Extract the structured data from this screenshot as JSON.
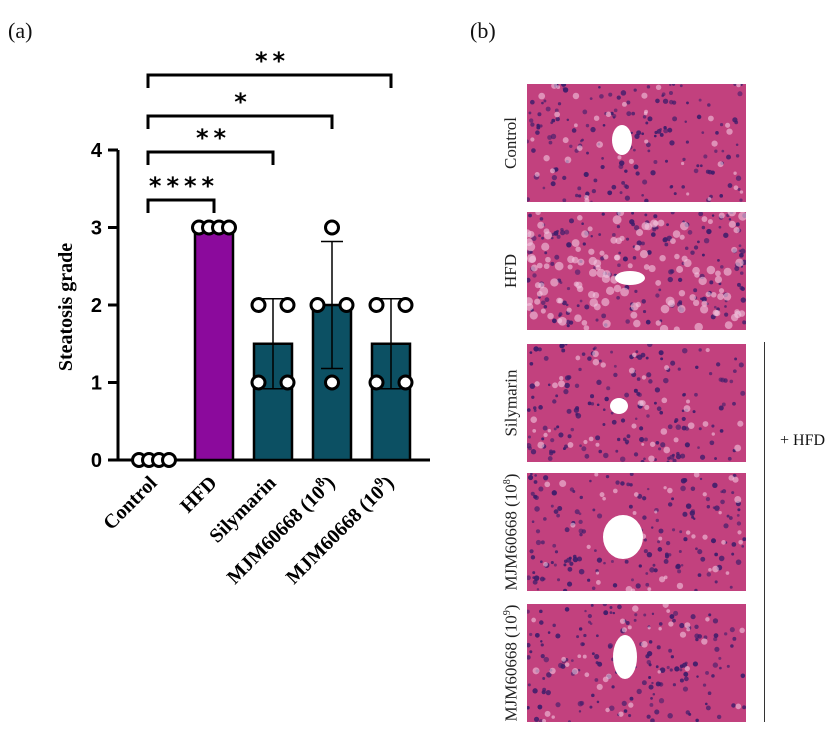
{
  "panel_a_label": "(a)",
  "panel_b_label": "(b)",
  "chart_data": {
    "type": "bar",
    "ylabel": "Steatosis grade",
    "xlabel": "",
    "ylim": [
      0,
      4
    ],
    "yticks": [
      "0",
      "1",
      "2",
      "3",
      "4"
    ],
    "categories": [
      "Control",
      "HFD",
      "Silymarin",
      "MJM60668 (10",
      "MJM60668 (10"
    ],
    "category_exponents": [
      "",
      "",
      "",
      "8",
      "9"
    ],
    "category_suffix": [
      "",
      "",
      "",
      ")",
      ")"
    ],
    "values": [
      0,
      3,
      1.5,
      2,
      1.5
    ],
    "errors": [
      0,
      0,
      0.58,
      0.82,
      0.58
    ],
    "points": [
      [
        0,
        0,
        0,
        0
      ],
      [
        3,
        3,
        3,
        3
      ],
      [
        1,
        2,
        1,
        2
      ],
      [
        3,
        2,
        1,
        2
      ],
      [
        1,
        2,
        1,
        2
      ]
    ],
    "bar_colors": [
      "#ffffff",
      "#8b0a9c",
      "#0c5063",
      "#0c5063",
      "#0c5063"
    ],
    "significance": [
      {
        "from": 0,
        "to": 1,
        "label": "****"
      },
      {
        "from": 0,
        "to": 2,
        "label": "**"
      },
      {
        "from": 0,
        "to": 3,
        "label": "*"
      },
      {
        "from": 0,
        "to": 4,
        "label": "**"
      }
    ]
  },
  "histology": {
    "rows": [
      {
        "label": "Control",
        "vessel": "#ffffff"
      },
      {
        "label": "HFD",
        "vessel": "#ffffff"
      },
      {
        "label": "Silymarin",
        "vessel": "#ffffff"
      },
      {
        "label": "MJM60668 (10",
        "label_sup": "8",
        "label_end": ")",
        "vessel": "#ffffff"
      },
      {
        "label": "MJM60668 (10",
        "label_sup": "9",
        "label_end": ")",
        "vessel": "#ffffff"
      }
    ],
    "tissue_color": "#c2417e",
    "nuclei_color": "#3c1d6b",
    "hfd_group_label": "+ HFD"
  }
}
